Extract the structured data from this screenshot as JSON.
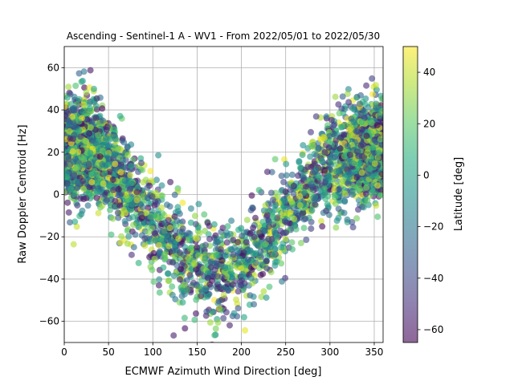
{
  "chart_data": {
    "type": "scatter",
    "title": "Ascending - Sentinel-1 A - WV1 - From 2022/05/01 to 2022/05/30",
    "xlabel": "ECMWF Azimuth Wind Direction [deg]",
    "ylabel": "Raw Doppler Centroid [Hz]",
    "xlim": [
      0,
      360
    ],
    "ylim": [
      -70,
      70
    ],
    "xticks": [
      "0",
      "50",
      "100",
      "150",
      "200",
      "250",
      "300",
      "350"
    ],
    "yticks": [
      "−60",
      "−40",
      "−20",
      "0",
      "20",
      "40",
      "60"
    ],
    "grid": true,
    "colorbar": {
      "label": "Latitude [deg]",
      "range": [
        -65,
        50
      ],
      "ticks": [
        "40",
        "20",
        "0",
        "−20",
        "−40",
        "−60"
      ],
      "colormap": "viridis",
      "alpha": 0.6
    },
    "trend": {
      "description_points": [
        {
          "x": 0,
          "y": 20
        },
        {
          "x": 25,
          "y": 22
        },
        {
          "x": 50,
          "y": 15
        },
        {
          "x": 75,
          "y": 2
        },
        {
          "x": 100,
          "y": -12
        },
        {
          "x": 125,
          "y": -25
        },
        {
          "x": 150,
          "y": -33
        },
        {
          "x": 175,
          "y": -37
        },
        {
          "x": 200,
          "y": -33
        },
        {
          "x": 225,
          "y": -22
        },
        {
          "x": 250,
          "y": -8
        },
        {
          "x": 275,
          "y": 5
        },
        {
          "x": 300,
          "y": 14
        },
        {
          "x": 325,
          "y": 20
        },
        {
          "x": 350,
          "y": 22
        },
        {
          "x": 360,
          "y": 21
        }
      ],
      "spread_hz": 11,
      "point_count": 4200
    },
    "colors": {
      "axes": "#000000",
      "grid": "#b0b0b0"
    }
  }
}
